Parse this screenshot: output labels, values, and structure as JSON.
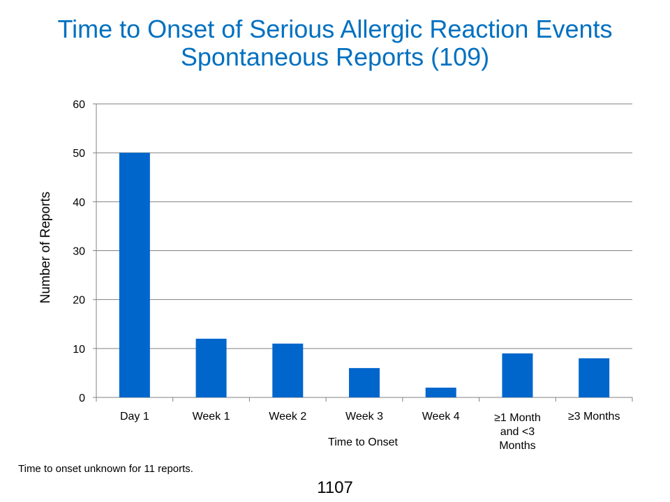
{
  "title_line1": "Time to Onset of Serious Allergic Reaction Events",
  "title_line2": "Spontaneous Reports (109)",
  "footnote": "Time to onset unknown for 11 reports.",
  "page_number": "1107",
  "colors": {
    "title": "#0070C0",
    "bar": "#0066CC"
  },
  "chart_data": {
    "type": "bar",
    "title": "Time to Onset of Serious Allergic Reaction Events Spontaneous Reports (109)",
    "categories": [
      "Day 1",
      "Week 1",
      "Week 2",
      "Week 3",
      "Week 4",
      "≥1 Month and <3 Months",
      "≥3 Months"
    ],
    "category_lines": [
      [
        "Day 1"
      ],
      [
        "Week 1"
      ],
      [
        "Week 2"
      ],
      [
        "Week 3"
      ],
      [
        "Week 4"
      ],
      [
        "≥1 Month",
        "and <3",
        "Months"
      ],
      [
        "≥3 Months"
      ]
    ],
    "values": [
      50,
      12,
      11,
      6,
      2,
      9,
      8
    ],
    "xlabel": "Time to Onset",
    "ylabel": "Number of Reports",
    "ylim": [
      0,
      60
    ],
    "yticks": [
      0,
      10,
      20,
      30,
      40,
      50,
      60
    ],
    "grid": true,
    "legend": "none"
  }
}
